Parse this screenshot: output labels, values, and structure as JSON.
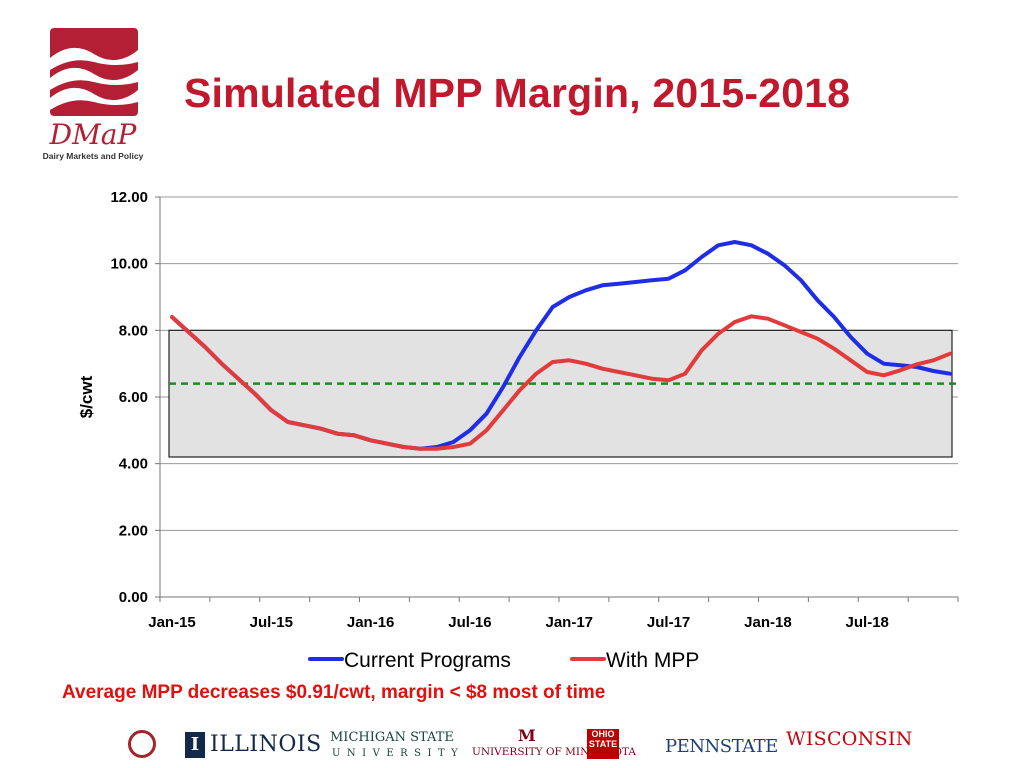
{
  "logo": {
    "name": "DMaP",
    "tagline": "Dairy Markets and Policy"
  },
  "title": "Simulated MPP Margin, 2015-2018",
  "subtitle": "Average MPP decreases $0.91/cwt, margin < $8 most of time",
  "colors": {
    "title": "#c0182c",
    "subtitle": "#e01010",
    "current": "#1f2ee6",
    "mpp": "#e23b3b",
    "reference": "#1f8a1f",
    "band_fill": "#e2e2e2",
    "logo": "#b32035"
  },
  "chart_data": {
    "type": "line",
    "ylabel": "$/cwt",
    "ylim": [
      0,
      12
    ],
    "yticks": [
      "0.00",
      "2.00",
      "4.00",
      "6.00",
      "8.00",
      "10.00",
      "12.00"
    ],
    "xticks": [
      "Jan-15",
      "Jul-15",
      "Jan-16",
      "Jul-16",
      "Jan-17",
      "Jul-17",
      "Jan-18",
      "Jul-18"
    ],
    "grid": true,
    "legend_position": "bottom",
    "band": {
      "y_low": 4.2,
      "y_high": 8.0
    },
    "reference_line": {
      "y": 6.4,
      "style": "dashed"
    },
    "x_months": [
      0,
      1,
      2,
      3,
      4,
      5,
      6,
      7,
      8,
      9,
      10,
      11,
      12,
      13,
      14,
      15,
      16,
      17,
      18,
      19,
      20,
      21,
      22,
      23,
      24,
      25,
      26,
      27,
      28,
      29,
      30,
      31,
      32,
      33,
      34,
      35,
      36,
      37,
      38,
      39,
      40,
      41,
      42,
      43,
      44,
      45,
      46,
      47
    ],
    "series": [
      {
        "name": "Current Programs",
        "values": [
          8.4,
          7.95,
          7.5,
          7.0,
          6.55,
          6.1,
          5.6,
          5.25,
          5.15,
          5.05,
          4.9,
          4.85,
          4.7,
          4.6,
          4.5,
          4.45,
          4.5,
          4.65,
          5.0,
          5.5,
          6.3,
          7.2,
          8.0,
          8.7,
          9.0,
          9.2,
          9.35,
          9.4,
          9.45,
          9.5,
          9.55,
          9.8,
          10.2,
          10.55,
          10.65,
          10.55,
          10.3,
          9.95,
          9.5,
          8.9,
          8.4,
          7.8,
          7.3,
          7.0,
          6.95,
          6.9,
          6.78,
          6.7
        ]
      },
      {
        "name": "With MPP",
        "values": [
          8.4,
          7.95,
          7.5,
          7.0,
          6.55,
          6.1,
          5.6,
          5.25,
          5.15,
          5.05,
          4.9,
          4.85,
          4.7,
          4.6,
          4.5,
          4.45,
          4.45,
          4.5,
          4.6,
          5.0,
          5.6,
          6.2,
          6.7,
          7.05,
          7.1,
          7.0,
          6.85,
          6.75,
          6.65,
          6.55,
          6.5,
          6.7,
          7.4,
          7.9,
          8.25,
          8.42,
          8.35,
          8.15,
          7.95,
          7.75,
          7.45,
          7.1,
          6.75,
          6.65,
          6.8,
          6.98,
          7.1,
          7.3
        ]
      }
    ]
  },
  "universities": [
    "ILLINOIS",
    "MICHIGAN STATE",
    "UNIVERSITY",
    "UNIVERSITY OF MINNESOTA",
    "OHIO STATE",
    "PENNSTATE",
    "WISCONSIN"
  ]
}
